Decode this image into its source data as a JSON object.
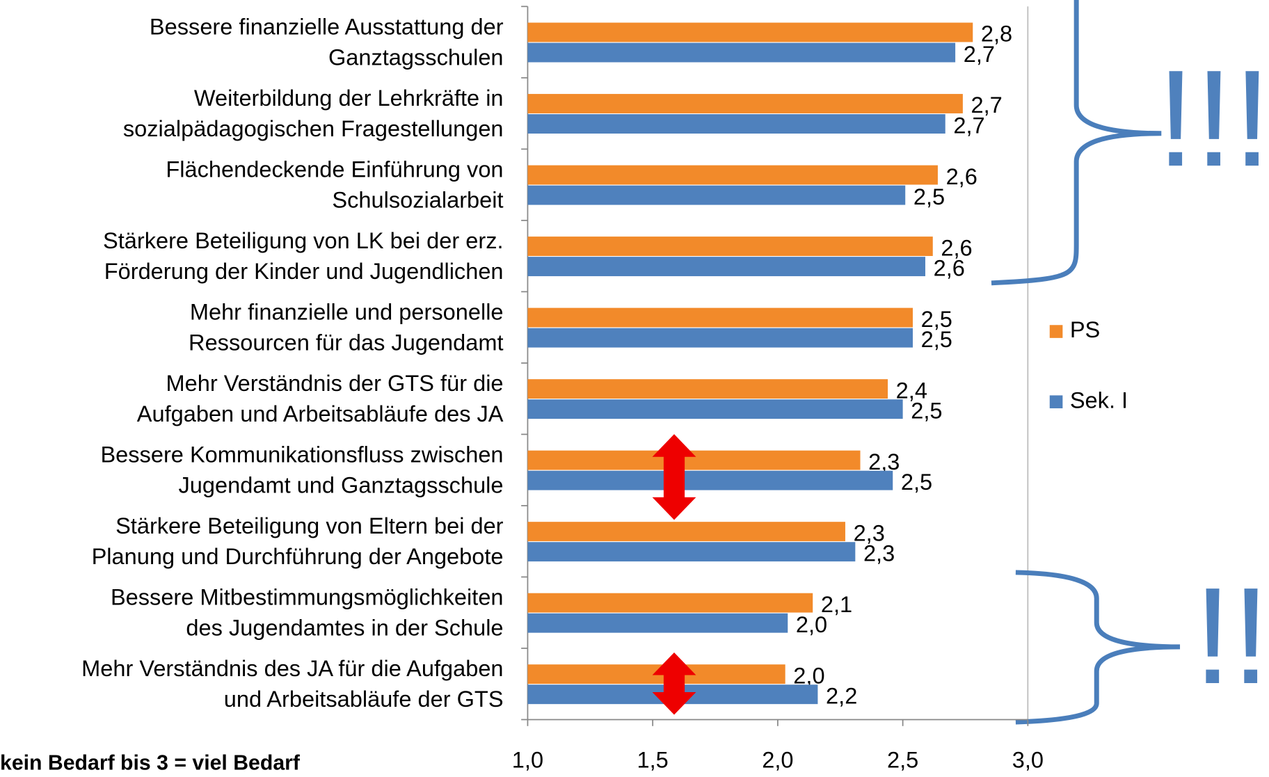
{
  "chart_data": {
    "type": "bar",
    "orientation": "horizontal",
    "categories": [
      [
        "Bessere finanzielle Ausstattung der",
        "Ganztagsschulen"
      ],
      [
        "Weiterbildung der Lehrkräfte in",
        "sozialpädagogischen Fragestellungen"
      ],
      [
        "Flächendeckende Einführung von",
        "Schulsozialarbeit"
      ],
      [
        "Stärkere Beteiligung von LK bei der erz.",
        "Förderung der Kinder und Jugendlichen"
      ],
      [
        "Mehr finanzielle und personelle",
        "Ressourcen für das Jugendamt"
      ],
      [
        "Mehr Verständnis der GTS für die",
        "Aufgaben und Arbeitsabläufe des JA"
      ],
      [
        "Bessere Kommunikationsfluss zwischen",
        "Jugendamt und Ganztagsschule"
      ],
      [
        "Stärkere Beteiligung  von Eltern bei der",
        "Planung und Durchführung der Angebote"
      ],
      [
        "Bessere Mitbestimmungsmöglichkeiten",
        "des Jugendamtes in der Schule"
      ],
      [
        "Mehr Verständnis des JA für die Aufgaben",
        "und Arbeitsabläufe der GTS"
      ]
    ],
    "series": [
      {
        "name": "PS",
        "color": "#f28a2a",
        "values": [
          2.78,
          2.74,
          2.64,
          2.62,
          2.54,
          2.44,
          2.33,
          2.27,
          2.14,
          2.03
        ],
        "value_labels": [
          "2,8",
          "2,7",
          "2,6",
          "2,6",
          "2,5",
          "2,4",
          "2,3",
          "2,3",
          "2,1",
          "2,0"
        ]
      },
      {
        "name": "Sek. I",
        "color": "#4f81bd",
        "values": [
          2.71,
          2.67,
          2.51,
          2.59,
          2.54,
          2.5,
          2.46,
          2.31,
          2.04,
          2.16
        ],
        "value_labels": [
          "2,7",
          "2,7",
          "2,5",
          "2,6",
          "2,5",
          "2,5",
          "2,5",
          "2,3",
          "2,0",
          "2,2"
        ]
      }
    ],
    "xlim": [
      1,
      3
    ],
    "xticks": [
      {
        "value": 1,
        "label": "1,0"
      },
      {
        "value": 1.5,
        "label": "1,5"
      },
      {
        "value": 2,
        "label": "2,0"
      },
      {
        "value": 2.5,
        "label": "2,5"
      },
      {
        "value": 3,
        "label": "3,0"
      }
    ],
    "legend": "right",
    "annotations": [
      "kein Bedarf bis 3 = viel Bedarf",
      "!!!",
      "!!"
    ]
  }
}
